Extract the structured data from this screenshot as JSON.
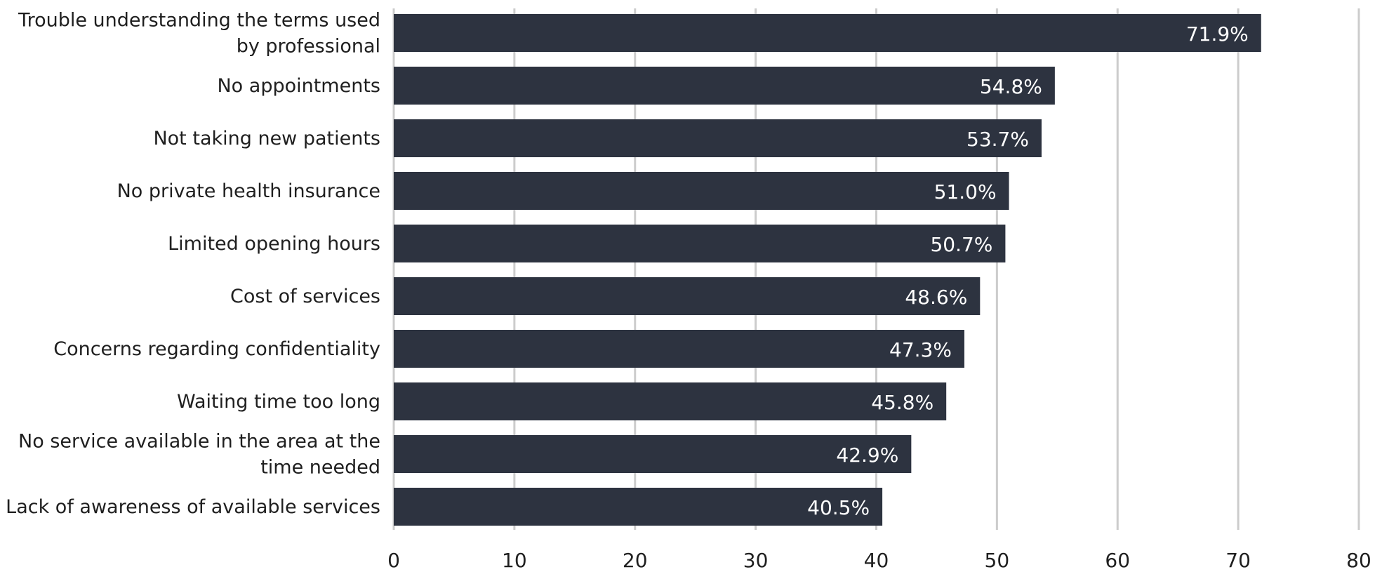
{
  "chart_data": {
    "type": "bar",
    "orientation": "horizontal",
    "categories": [
      "Trouble understanding the terms used by professional",
      "No appointments",
      "Not taking new patients",
      "No private health insurance",
      "Limited opening hours",
      "Cost of services",
      "Concerns regarding confidentiality",
      "Waiting time too long",
      "No service available in the area at the time needed",
      "Lack of awareness of available services"
    ],
    "category_lines": [
      [
        "Trouble understanding the terms used",
        "by professional"
      ],
      [
        "No appointments"
      ],
      [
        "Not taking new patients"
      ],
      [
        "No private health insurance"
      ],
      [
        "Limited opening hours"
      ],
      [
        "Cost of services"
      ],
      [
        "Concerns regarding confidentiality"
      ],
      [
        "Waiting time too long"
      ],
      [
        "No service available in the area at the",
        "time needed"
      ],
      [
        "Lack of awareness of available services"
      ]
    ],
    "values": [
      71.9,
      54.8,
      53.7,
      51.0,
      50.7,
      48.6,
      47.3,
      45.8,
      42.9,
      40.5
    ],
    "data_labels": [
      "71.9%",
      "54.8%",
      "53.7%",
      "51.0%",
      "50.7%",
      "48.6%",
      "47.3%",
      "45.8%",
      "42.9%",
      "40.5%"
    ],
    "xlim": [
      0,
      80
    ],
    "xticks": [
      0,
      10,
      20,
      30,
      40,
      50,
      60,
      70,
      80
    ],
    "xtick_labels": [
      "0",
      "10",
      "20",
      "30",
      "40",
      "50",
      "60",
      "70",
      "80"
    ],
    "grid": true,
    "title": "",
    "xlabel": "",
    "ylabel": "",
    "bar_color": "#2d3340",
    "grid_color": "#cccccc",
    "label_color": "#ffffff"
  }
}
